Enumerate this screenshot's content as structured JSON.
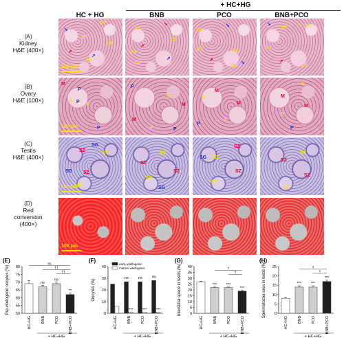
{
  "header": {
    "group_top": "+ HC+HG",
    "col1": "HC + HG",
    "col2": "BNB",
    "col3": "PCO",
    "col4": "BNB+PCO"
  },
  "rows": {
    "a": {
      "letter": "(A)",
      "line1": "Kidney",
      "line2": "H&E (400×)"
    },
    "b": {
      "letter": "(B)",
      "line1": "Ovary",
      "line2": "H&E (100×)"
    },
    "c": {
      "letter": "(C)",
      "line1": "Testis",
      "line2": "H&E (400×)"
    },
    "d": {
      "letter": "(D)",
      "line1": "Red",
      "line2": "conversion",
      "line3": "(400×)"
    }
  },
  "scalebars": {
    "a": "100 μm",
    "b": "100 μm",
    "c": "100 μm",
    "d": "100 μm"
  },
  "tissue_markers": {
    "pt": "PT",
    "dt": "DT",
    "p": "P",
    "m": "M",
    "s": "S",
    "e": "E",
    "sz": "SZ",
    "sg": "SG",
    "st": "ST"
  },
  "colors": {
    "marker_yellow": "#ffe100",
    "marker_red": "#e8002a",
    "marker_blue": "#1b2bd8",
    "bar_light": "#ffffff",
    "bar_dark": "#1f1f1f"
  },
  "chart_data": [
    {
      "panel": "(E)",
      "type": "bar",
      "ylabel": "Pre-vitelogenic oocytes (%)",
      "categories": [
        "HC+HG",
        "BNB",
        "PCO",
        "BNB+PCO"
      ],
      "group_label": "+ HC+HG",
      "values": [
        69,
        67,
        69,
        62
      ],
      "errors": [
        2,
        1,
        1,
        1
      ],
      "ylim": [
        50,
        80
      ],
      "yticks": [
        50,
        55,
        60,
        65,
        70,
        75,
        80
      ],
      "bar_labels": [
        "",
        "ns",
        "ns",
        "**"
      ],
      "brackets": [
        "ns",
        "††",
        "††"
      ]
    },
    {
      "panel": "(F)",
      "type": "bar",
      "ylabel": "Oocytes (%)",
      "categories": [
        "HC+HG",
        "BNB",
        "PCO",
        "BNB+PCO"
      ],
      "group_label": "+ HC+HG",
      "legend": [
        "early-vitellogenic",
        "mature-vitellogenic"
      ],
      "series": [
        {
          "name": "early-vitellogenic",
          "values": [
            25,
            27,
            27,
            28
          ]
        },
        {
          "name": "mature-vitellogenic",
          "values": [
            6,
            1,
            1,
            1
          ]
        }
      ],
      "ylim": [
        0,
        40
      ],
      "yticks": [
        0,
        10,
        20,
        30,
        40
      ],
      "bar_labels": [
        "",
        "ns",
        "ns",
        "ns"
      ],
      "mature_labels": [
        "",
        "***",
        "***",
        "***"
      ]
    },
    {
      "panel": "(G)",
      "type": "bar",
      "ylabel": "Interstitial space in testis (%)",
      "categories": [
        "HC+HG",
        "BNB",
        "PCO",
        "BNB+PCO"
      ],
      "group_label": "+ HC+HG",
      "values": [
        27,
        22,
        22,
        19
      ],
      "errors": [
        0.5,
        0.5,
        0.5,
        0.5
      ],
      "ylim": [
        0,
        40
      ],
      "yticks": [
        0,
        5,
        10,
        15,
        20,
        25,
        30,
        35,
        40
      ],
      "bar_labels": [
        "",
        "***",
        "***",
        "***"
      ],
      "brackets": [
        "†",
        "†"
      ]
    },
    {
      "panel": "(H)",
      "type": "bar",
      "ylabel": "Spermatozoa area in testis (%)",
      "categories": [
        "HC+HG",
        "BNB",
        "PCO",
        "BNB+PCO"
      ],
      "group_label": "+ HC+HG",
      "values": [
        8,
        14,
        14,
        17
      ],
      "errors": [
        0.7,
        0.7,
        0.7,
        0.7
      ],
      "ylim": [
        0,
        25
      ],
      "yticks": [
        0,
        5,
        10,
        15,
        20,
        25
      ],
      "bar_labels": [
        "",
        "***",
        "***",
        "***"
      ],
      "brackets": [
        "†",
        "†"
      ]
    }
  ]
}
